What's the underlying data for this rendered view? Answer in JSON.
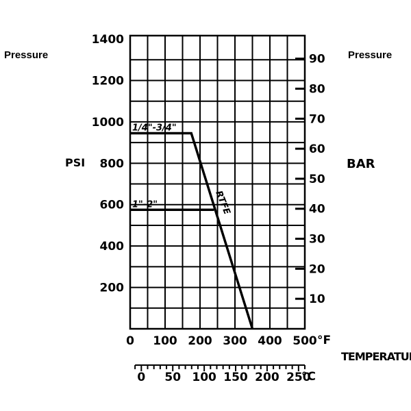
{
  "labels": {
    "left_pressure": "Pressure",
    "right_pressure": "Pressure",
    "left_unit": "PSI",
    "right_unit": "BAR",
    "temperature": "TEMPERATURE",
    "unit_f": "°F",
    "unit_c": "°C"
  },
  "chart_data": {
    "type": "line",
    "title": "",
    "xlabel": "TEMPERATURE",
    "ylabel": "PSI",
    "y2label": "BAR",
    "xlim": [
      0,
      500
    ],
    "ylim": [
      0,
      1400
    ],
    "grid": true,
    "x_ticks": [
      0,
      100,
      200,
      300,
      400,
      500
    ],
    "y_ticks": [
      200,
      400,
      600,
      800,
      1000,
      1200,
      1400
    ],
    "y2_ticks": [
      10,
      20,
      30,
      40,
      50,
      60,
      70,
      80,
      90
    ],
    "x2_ticks": [
      0,
      50,
      100,
      150,
      200,
      250
    ],
    "series": [
      {
        "name": "1/4\"-3/4\"",
        "x": [
          0,
          175,
          350
        ],
        "y": [
          945,
          945,
          0
        ]
      },
      {
        "name": "1\"-2\"",
        "x": [
          0,
          240
        ],
        "y": [
          575,
          575
        ]
      }
    ],
    "annotations": [
      {
        "text": "RTFE",
        "x": 245,
        "y": 660
      }
    ]
  }
}
